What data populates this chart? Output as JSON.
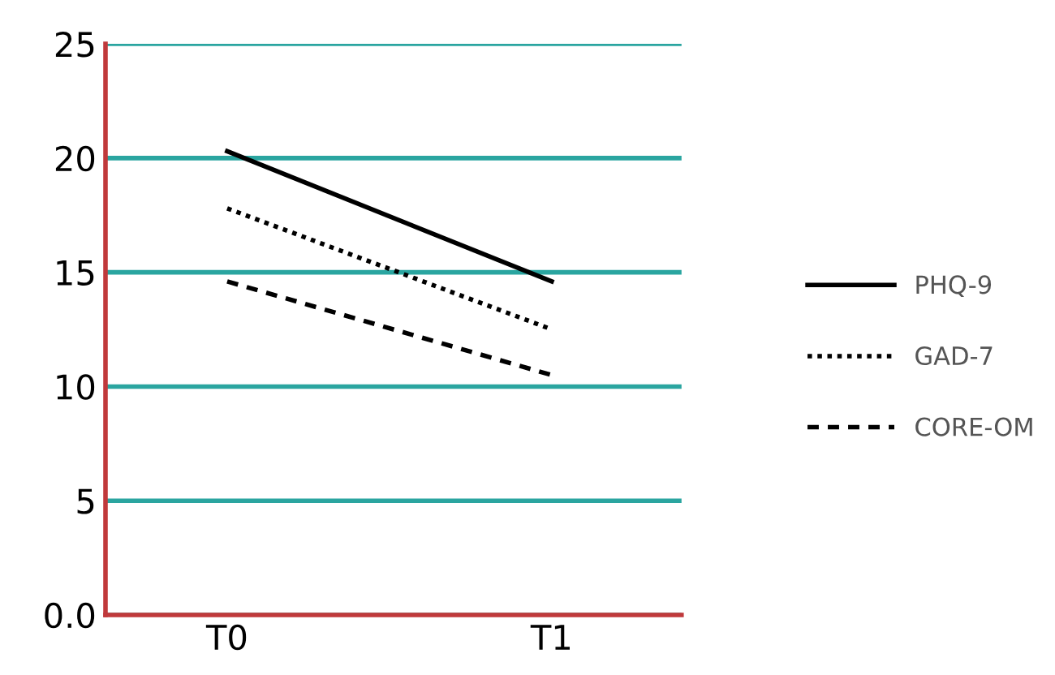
{
  "chart_data": {
    "type": "line",
    "categories": [
      "T0",
      "T1"
    ],
    "series": [
      {
        "name": "PHQ-9",
        "color": "#000000",
        "line_style": "solid",
        "values": [
          20.3,
          14.6
        ]
      },
      {
        "name": "GAD-7",
        "color": "#000000",
        "line_style": "dotted",
        "values": [
          17.8,
          12.5
        ]
      },
      {
        "name": "CORE-OM",
        "color": "#000000",
        "line_style": "dashed",
        "values": [
          14.6,
          10.5
        ]
      }
    ],
    "ylim": [
      0,
      25
    ],
    "yticks": [
      {
        "value": 0,
        "label": "0.0"
      },
      5,
      10,
      15,
      20,
      25
    ],
    "grid": "y",
    "legend": "right",
    "marker": "none"
  }
}
